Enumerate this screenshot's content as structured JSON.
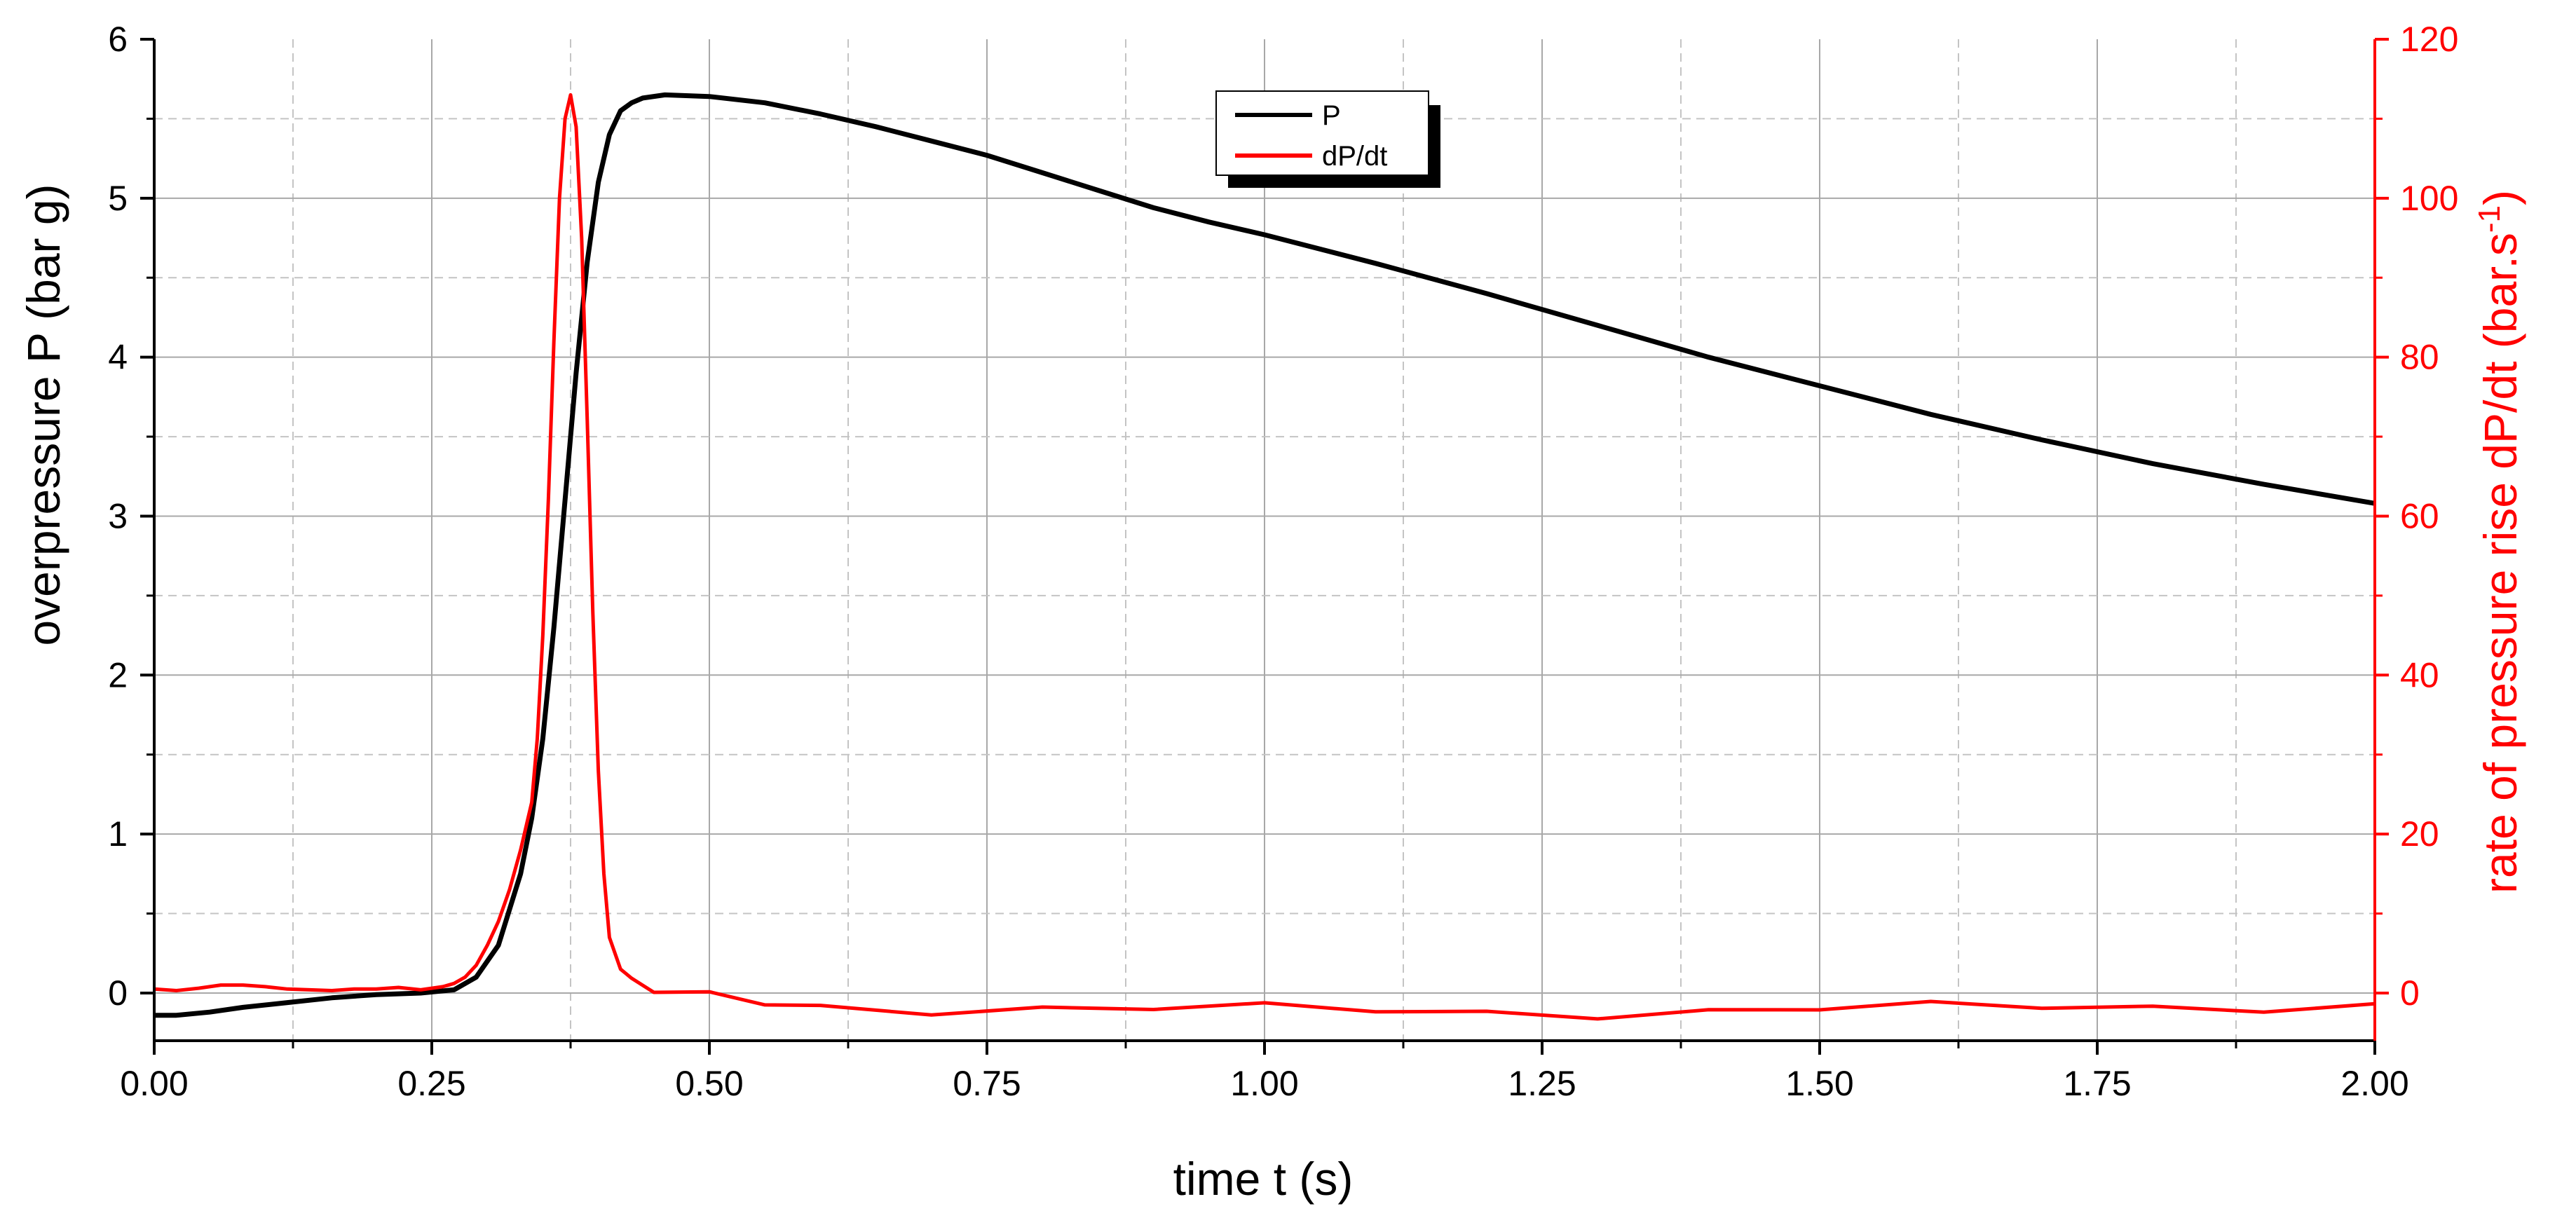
{
  "chart_data": {
    "type": "line",
    "title": "",
    "xlabel": "time t (s)",
    "ylabel_left": "overpressure P (bar g)",
    "ylabel_right_text": "rate of pressure rise dP/dt (bar.s",
    "ylabel_right_sup": "-1",
    "ylabel_right_end": ")",
    "xlim": [
      0,
      2
    ],
    "ylim_left": [
      -0.3,
      6
    ],
    "ylim_right": [
      -6,
      120
    ],
    "x_ticks": [
      "0.00",
      "0.25",
      "0.50",
      "0.75",
      "1.00",
      "1.25",
      "1.50",
      "1.75",
      "2.00"
    ],
    "y_left_ticks": [
      "0",
      "1",
      "2",
      "3",
      "4",
      "5",
      "6"
    ],
    "y_right_ticks": [
      "0",
      "20",
      "40",
      "60",
      "80",
      "100",
      "120"
    ],
    "grid": true,
    "legend_position": "top-center",
    "series": [
      {
        "name": "P",
        "axis": "left",
        "color": "#000000",
        "x": [
          0.0,
          0.02,
          0.05,
          0.08,
          0.12,
          0.16,
          0.2,
          0.24,
          0.27,
          0.29,
          0.31,
          0.33,
          0.34,
          0.35,
          0.36,
          0.37,
          0.38,
          0.39,
          0.4,
          0.41,
          0.42,
          0.43,
          0.44,
          0.46,
          0.5,
          0.55,
          0.6,
          0.65,
          0.7,
          0.75,
          0.8,
          0.85,
          0.9,
          0.95,
          1.0,
          1.1,
          1.2,
          1.3,
          1.4,
          1.5,
          1.6,
          1.7,
          1.8,
          1.9,
          2.0
        ],
        "y": [
          -0.14,
          -0.14,
          -0.12,
          -0.09,
          -0.06,
          -0.03,
          -0.01,
          0.0,
          0.02,
          0.1,
          0.3,
          0.75,
          1.1,
          1.6,
          2.3,
          3.1,
          3.9,
          4.6,
          5.1,
          5.4,
          5.55,
          5.6,
          5.63,
          5.65,
          5.64,
          5.6,
          5.53,
          5.45,
          5.36,
          5.27,
          5.16,
          5.05,
          4.94,
          4.85,
          4.77,
          4.59,
          4.4,
          4.2,
          4.0,
          3.82,
          3.64,
          3.48,
          3.33,
          3.2,
          3.08
        ]
      },
      {
        "name": "dP/dt",
        "axis": "right",
        "color": "#ff0000",
        "x": [
          0.0,
          0.02,
          0.04,
          0.06,
          0.08,
          0.1,
          0.12,
          0.14,
          0.16,
          0.18,
          0.2,
          0.22,
          0.24,
          0.26,
          0.27,
          0.28,
          0.29,
          0.3,
          0.31,
          0.32,
          0.33,
          0.34,
          0.345,
          0.35,
          0.355,
          0.36,
          0.365,
          0.37,
          0.375,
          0.38,
          0.385,
          0.39,
          0.395,
          0.4,
          0.405,
          0.41,
          0.42,
          0.43,
          0.45,
          0.5,
          0.55,
          0.6,
          0.7,
          0.8,
          0.9,
          1.0,
          1.1,
          1.2,
          1.3,
          1.4,
          1.5,
          1.6,
          1.7,
          1.8,
          1.9,
          2.0
        ],
        "y": [
          0.5,
          0.3,
          0.6,
          1.0,
          1.0,
          0.8,
          0.5,
          0.4,
          0.3,
          0.5,
          0.5,
          0.7,
          0.4,
          0.8,
          1.2,
          2.0,
          3.5,
          6.0,
          9.0,
          13.0,
          18.0,
          24.0,
          32.0,
          45.0,
          62.0,
          82.0,
          100.0,
          110.0,
          113.0,
          109.0,
          95.0,
          72.0,
          48.0,
          28.0,
          15.0,
          7.0,
          3.0,
          1.5,
          0.0,
          -0.8,
          -1.2,
          -1.5,
          -1.8,
          -2.0,
          -2.1,
          -2.2,
          -2.2,
          -2.3,
          -2.3,
          -2.2,
          -2.1,
          -2.0,
          -1.9,
          -1.7,
          -1.5,
          -1.3
        ]
      }
    ]
  }
}
